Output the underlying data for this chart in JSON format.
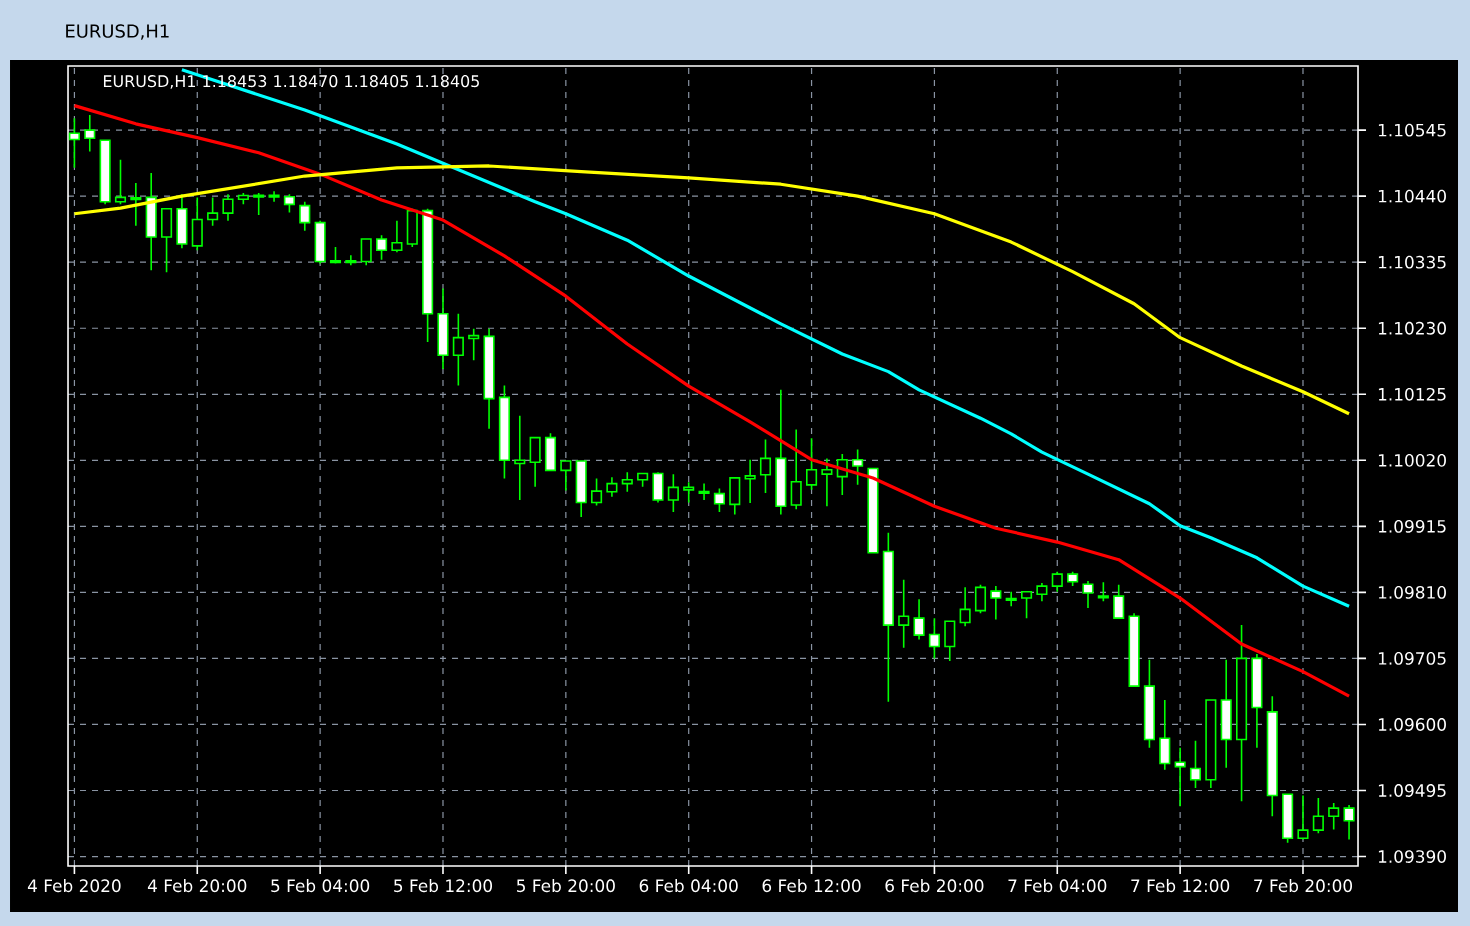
{
  "chart_data": {
    "type": "candlestick",
    "title": "EURUSD,H1",
    "subtitle": "EURUSD,H1 1.18453 1.18470 1.18405 1.18405",
    "color": "#00ff00",
    "grid": true,
    "x": [
      "2020-02-04T12:00",
      "2020-02-04T13:00",
      "2020-02-04T14:00",
      "2020-02-04T15:00",
      "2020-02-04T16:00",
      "2020-02-04T17:00",
      "2020-02-04T18:00",
      "2020-02-04T19:00",
      "2020-02-04T20:00",
      "2020-02-04T21:00",
      "2020-02-04T22:00",
      "2020-02-04T23:00",
      "2020-02-05T00:00",
      "2020-02-05T01:00",
      "2020-02-05T02:00",
      "2020-02-05T03:00",
      "2020-02-05T04:00",
      "2020-02-05T05:00",
      "2020-02-05T06:00",
      "2020-02-05T07:00",
      "2020-02-05T08:00",
      "2020-02-05T09:00",
      "2020-02-05T10:00",
      "2020-02-05T11:00",
      "2020-02-05T12:00",
      "2020-02-05T13:00",
      "2020-02-05T14:00",
      "2020-02-05T15:00",
      "2020-02-05T16:00",
      "2020-02-05T17:00",
      "2020-02-05T18:00",
      "2020-02-05T19:00",
      "2020-02-05T20:00",
      "2020-02-05T21:00",
      "2020-02-05T22:00",
      "2020-02-05T23:00",
      "2020-02-06T00:00",
      "2020-02-06T01:00",
      "2020-02-06T02:00",
      "2020-02-06T03:00",
      "2020-02-06T04:00",
      "2020-02-06T05:00",
      "2020-02-06T06:00",
      "2020-02-06T07:00",
      "2020-02-06T08:00",
      "2020-02-06T09:00",
      "2020-02-06T10:00",
      "2020-02-06T11:00",
      "2020-02-06T12:00",
      "2020-02-06T13:00",
      "2020-02-06T14:00",
      "2020-02-06T15:00",
      "2020-02-06T16:00",
      "2020-02-06T17:00",
      "2020-02-06T18:00",
      "2020-02-06T19:00",
      "2020-02-06T20:00",
      "2020-02-06T21:00",
      "2020-02-06T22:00",
      "2020-02-06T23:00",
      "2020-02-07T00:00",
      "2020-02-07T01:00",
      "2020-02-07T02:00",
      "2020-02-07T03:00",
      "2020-02-07T04:00",
      "2020-02-07T05:00",
      "2020-02-07T06:00",
      "2020-02-07T07:00",
      "2020-02-07T08:00",
      "2020-02-07T09:00",
      "2020-02-07T10:00",
      "2020-02-07T11:00",
      "2020-02-07T12:00",
      "2020-02-07T13:00",
      "2020-02-07T14:00",
      "2020-02-07T15:00",
      "2020-02-07T16:00",
      "2020-02-07T17:00",
      "2020-02-07T18:00",
      "2020-02-07T19:00",
      "2020-02-07T20:00",
      "2020-02-07T21:00",
      "2020-02-07T22:00",
      "2020-02-07T23:00"
    ],
    "ohlc": [
      [
        1.1054,
        1.10564,
        1.10485,
        1.1053
      ],
      [
        1.10545,
        1.10569,
        1.10511,
        1.10532
      ],
      [
        1.10529,
        1.10529,
        1.10427,
        1.10431
      ],
      [
        1.10431,
        1.10498,
        1.10427,
        1.10438
      ],
      [
        1.10436,
        1.10461,
        1.10393,
        1.10436
      ],
      [
        1.10438,
        1.10477,
        1.10322,
        1.10375
      ],
      [
        1.10375,
        1.1042,
        1.10319,
        1.1042
      ],
      [
        1.1042,
        1.10443,
        1.10357,
        1.10364
      ],
      [
        1.10361,
        1.10438,
        1.10354,
        1.10403
      ],
      [
        1.10403,
        1.10438,
        1.10393,
        1.10413
      ],
      [
        1.10413,
        1.10443,
        1.10401,
        1.10435
      ],
      [
        1.10435,
        1.10445,
        1.10427,
        1.10441
      ],
      [
        1.1044,
        1.10445,
        1.1041,
        1.1044
      ],
      [
        1.1044,
        1.10448,
        1.10431,
        1.1044
      ],
      [
        1.10439,
        1.10443,
        1.10414,
        1.10427
      ],
      [
        1.10425,
        1.10431,
        1.10385,
        1.10398
      ],
      [
        1.10398,
        1.10401,
        1.10333,
        1.10336
      ],
      [
        1.10336,
        1.10359,
        1.10333,
        1.10336
      ],
      [
        1.10336,
        1.10346,
        1.1033,
        1.10336
      ],
      [
        1.10336,
        1.10372,
        1.1033,
        1.10372
      ],
      [
        1.10372,
        1.10378,
        1.10339,
        1.10354
      ],
      [
        1.10354,
        1.10401,
        1.10351,
        1.10366
      ],
      [
        1.10364,
        1.1042,
        1.10359,
        1.10417
      ],
      [
        1.10417,
        1.1042,
        1.10208,
        1.10253
      ],
      [
        1.10253,
        1.10293,
        1.10165,
        1.10187
      ],
      [
        1.10187,
        1.10253,
        1.10139,
        1.10215
      ],
      [
        1.10215,
        1.10229,
        1.10179,
        1.10217
      ],
      [
        1.10217,
        1.10229,
        1.1007,
        1.10118
      ],
      [
        1.1012,
        1.10139,
        1.09991,
        1.1002
      ],
      [
        1.10015,
        1.10091,
        1.09957,
        1.1002
      ],
      [
        1.10017,
        1.10056,
        1.09978,
        1.10056
      ],
      [
        1.10056,
        1.10063,
        1.10004,
        1.10004
      ],
      [
        1.10004,
        1.10019,
        1.09972,
        1.10019
      ],
      [
        1.10019,
        1.10019,
        1.0993,
        1.09953
      ],
      [
        1.09953,
        1.09991,
        1.09948,
        1.09971
      ],
      [
        1.0997,
        1.09993,
        1.09962,
        1.09983
      ],
      [
        1.09983,
        1.10001,
        1.0997,
        1.09989
      ],
      [
        1.09989,
        1.09999,
        1.09978,
        1.09999
      ],
      [
        1.09999,
        1.10001,
        1.09953,
        1.09957
      ],
      [
        1.09957,
        1.09998,
        1.09938,
        1.09977
      ],
      [
        1.09973,
        1.09985,
        1.09953,
        1.09977
      ],
      [
        1.09969,
        1.09983,
        1.09957,
        1.09969
      ],
      [
        1.09967,
        1.09975,
        1.09938,
        1.09951
      ],
      [
        1.0995,
        1.09992,
        1.09934,
        1.09992
      ],
      [
        1.09992,
        1.10021,
        1.09952,
        1.09994
      ],
      [
        1.09997,
        1.10053,
        1.09968,
        1.10023
      ],
      [
        1.10023,
        1.10132,
        1.09934,
        1.09947
      ],
      [
        1.09949,
        1.10069,
        1.09942,
        1.09986
      ],
      [
        1.09981,
        1.10055,
        1.09973,
        1.10005
      ],
      [
        1.09998,
        1.10023,
        1.09947,
        1.10005
      ],
      [
        1.09994,
        1.1003,
        1.09965,
        1.10021
      ],
      [
        1.10021,
        1.10037,
        1.09981,
        1.10011
      ],
      [
        1.10007,
        1.10007,
        1.09873,
        1.09873
      ],
      [
        1.09875,
        1.09905,
        1.09636,
        1.09758
      ],
      [
        1.09758,
        1.0983,
        1.09722,
        1.09772
      ],
      [
        1.09769,
        1.09799,
        1.09735,
        1.09742
      ],
      [
        1.09743,
        1.09769,
        1.09705,
        1.09724
      ],
      [
        1.09724,
        1.09764,
        1.09701,
        1.09764
      ],
      [
        1.09762,
        1.09818,
        1.09756,
        1.09783
      ],
      [
        1.09781,
        1.09822,
        1.09777,
        1.09818
      ],
      [
        1.09812,
        1.0982,
        1.09767,
        1.09801
      ],
      [
        1.09799,
        1.09811,
        1.09788,
        1.09799
      ],
      [
        1.09801,
        1.09811,
        1.09769,
        1.09811
      ],
      [
        1.09807,
        1.09825,
        1.09796,
        1.0982
      ],
      [
        1.0982,
        1.09843,
        1.09811,
        1.09839
      ],
      [
        1.09839,
        1.09843,
        1.0982,
        1.09827
      ],
      [
        1.09823,
        1.09828,
        1.09785,
        1.09809
      ],
      [
        1.09803,
        1.09826,
        1.09796,
        1.09803
      ],
      [
        1.09804,
        1.09822,
        1.09769,
        1.09769
      ],
      [
        1.09772,
        1.09777,
        1.09661,
        1.09661
      ],
      [
        1.09661,
        1.09703,
        1.09563,
        1.09576
      ],
      [
        1.09578,
        1.09639,
        1.09528,
        1.09538
      ],
      [
        1.0954,
        1.09563,
        1.0947,
        1.09533
      ],
      [
        1.0953,
        1.09574,
        1.09499,
        1.09512
      ],
      [
        1.09512,
        1.09639,
        1.09499,
        1.09639
      ],
      [
        1.09639,
        1.09703,
        1.09531,
        1.09576
      ],
      [
        1.09576,
        1.09758,
        1.09478,
        1.09705
      ],
      [
        1.09705,
        1.09712,
        1.09563,
        1.09627
      ],
      [
        1.0962,
        1.09645,
        1.09454,
        1.09487
      ],
      [
        1.09489,
        1.09489,
        1.09412,
        1.09419
      ],
      [
        1.09419,
        1.09487,
        1.09417,
        1.09432
      ],
      [
        1.09432,
        1.09483,
        1.09427,
        1.09454
      ],
      [
        1.09454,
        1.09475,
        1.09433,
        1.09467
      ],
      [
        1.09467,
        1.09472,
        1.09417,
        1.09447
      ]
    ],
    "series": [
      {
        "type": "line",
        "color": "#ff0000",
        "x": [
          "2020-02-04T12:00",
          "2020-02-04T16:00",
          "2020-02-04T20:00",
          "2020-02-05T00:00",
          "2020-02-05T04:00",
          "2020-02-05T08:00",
          "2020-02-05T12:00",
          "2020-02-05T16:00",
          "2020-02-05T20:00",
          "2020-02-06T00:00",
          "2020-02-06T04:00",
          "2020-02-06T08:00",
          "2020-02-06T12:00",
          "2020-02-06T16:00",
          "2020-02-06T20:00",
          "2020-02-07T00:00",
          "2020-02-07T04:00",
          "2020-02-07T08:00",
          "2020-02-07T12:00",
          "2020-02-07T16:00",
          "2020-02-07T20:00",
          "2020-02-07T23:00"
        ],
        "values": [
          1.10584,
          1.10555,
          1.10533,
          1.10509,
          1.10475,
          1.10434,
          1.10402,
          1.10345,
          1.10281,
          1.10205,
          1.10138,
          1.10081,
          1.10021,
          1.09992,
          1.09947,
          1.09912,
          1.0989,
          1.09862,
          1.09801,
          1.09728,
          1.09684,
          1.09645
        ]
      },
      {
        "type": "line",
        "color": "#00ffff",
        "x": [
          "2020-02-04T19:00",
          "2020-02-04T23:00",
          "2020-02-05T03:00",
          "2020-02-05T09:00",
          "2020-02-05T18:00",
          "2020-02-05T20:00",
          "2020-02-06T00:00",
          "2020-02-06T04:00",
          "2020-02-06T07:00",
          "2020-02-06T10:00",
          "2020-02-06T14:00",
          "2020-02-06T17:00",
          "2020-02-06T19:00",
          "2020-02-06T23:00",
          "2020-02-07T01:00",
          "2020-02-07T03:00",
          "2020-02-07T06:00",
          "2020-02-07T10:00",
          "2020-02-07T12:00",
          "2020-02-07T14:00",
          "2020-02-07T17:00",
          "2020-02-07T20:00",
          "2020-02-07T23:00"
        ],
        "values": [
          1.10641,
          1.10609,
          1.10577,
          1.10523,
          1.10431,
          1.10412,
          1.1037,
          1.10313,
          1.10275,
          1.10237,
          1.10189,
          1.10161,
          1.10132,
          1.10087,
          1.10062,
          1.10033,
          1.09998,
          1.09951,
          1.09916,
          1.09897,
          1.09865,
          1.0982,
          1.09788
        ]
      },
      {
        "type": "line",
        "color": "#ffff00",
        "x": [
          "2020-02-04T12:00",
          "2020-02-04T15:00",
          "2020-02-04T19:00",
          "2020-02-04T23:00",
          "2020-02-05T03:00",
          "2020-02-05T09:00",
          "2020-02-05T15:00",
          "2020-02-05T21:00",
          "2020-02-06T04:00",
          "2020-02-06T10:00",
          "2020-02-06T15:00",
          "2020-02-06T20:00",
          "2020-02-07T01:00",
          "2020-02-07T05:00",
          "2020-02-07T09:00",
          "2020-02-07T12:00",
          "2020-02-07T16:00",
          "2020-02-07T20:00",
          "2020-02-07T23:00"
        ],
        "values": [
          1.10412,
          1.10421,
          1.1044,
          1.10456,
          1.10472,
          1.10485,
          1.10488,
          1.10479,
          1.10469,
          1.10459,
          1.1044,
          1.10412,
          1.10367,
          1.1032,
          1.10269,
          1.10215,
          1.1017,
          1.10129,
          1.10094
        ]
      }
    ],
    "xlim": [
      "2020-02-04T11:35",
      "2020-02-07T23:35"
    ],
    "ylim": [
      1.09375,
      1.10647
    ],
    "xticks": [
      {
        "value": "2020-02-04T12:00",
        "label": "4 Feb 2020"
      },
      {
        "value": "2020-02-04T20:00",
        "label": "4 Feb 20:00"
      },
      {
        "value": "2020-02-05T04:00",
        "label": "5 Feb 04:00"
      },
      {
        "value": "2020-02-05T12:00",
        "label": "5 Feb 12:00"
      },
      {
        "value": "2020-02-05T20:00",
        "label": "5 Feb 20:00"
      },
      {
        "value": "2020-02-06T04:00",
        "label": "6 Feb 04:00"
      },
      {
        "value": "2020-02-06T12:00",
        "label": "6 Feb 12:00"
      },
      {
        "value": "2020-02-06T20:00",
        "label": "6 Feb 20:00"
      },
      {
        "value": "2020-02-07T04:00",
        "label": "7 Feb 04:00"
      },
      {
        "value": "2020-02-07T12:00",
        "label": "7 Feb 12:00"
      },
      {
        "value": "2020-02-07T20:00",
        "label": "7 Feb 20:00"
      }
    ],
    "yticks": [
      {
        "value": 1.10545,
        "label": "1.10545"
      },
      {
        "value": 1.1044,
        "label": "1.10440"
      },
      {
        "value": 1.10335,
        "label": "1.10335"
      },
      {
        "value": 1.1023,
        "label": "1.10230"
      },
      {
        "value": 1.10125,
        "label": "1.10125"
      },
      {
        "value": 1.1002,
        "label": "1.10020"
      },
      {
        "value": 1.09915,
        "label": "1.09915"
      },
      {
        "value": 1.0981,
        "label": "1.09810"
      },
      {
        "value": 1.09705,
        "label": "1.09705"
      },
      {
        "value": 1.096,
        "label": "1.09600"
      },
      {
        "value": 1.09495,
        "label": "1.09495"
      },
      {
        "value": 1.0939,
        "label": "1.09390"
      }
    ]
  }
}
